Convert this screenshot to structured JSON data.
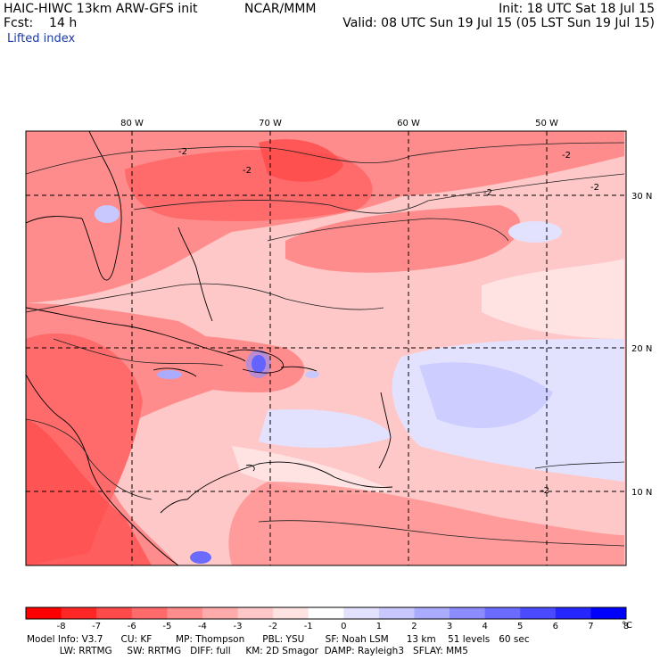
{
  "header": {
    "model_title": "HAIC-HIWC 13km ARW-GFS init",
    "org": "NCAR/MMM",
    "init": "Init: 18 UTC Sat 18 Jul 15",
    "fcst": "Fcst:    14 h",
    "valid": "Valid: 08 UTC Sun 19 Jul 15 (05 LST Sun 19 Jul 15)",
    "field": "Lifted index"
  },
  "map": {
    "lon_labels": [
      "80 W",
      "70 W",
      "60 W",
      "50 W"
    ],
    "lat_labels": [
      "30 N",
      "20 N",
      "10 N"
    ],
    "contour_label": "-2"
  },
  "colorbar": {
    "labels": [
      "-8",
      "-7",
      "-6",
      "-5",
      "-4",
      "-3",
      "-2",
      "-1",
      "0",
      "1",
      "2",
      "3",
      "4",
      "5",
      "6",
      "7",
      "8"
    ],
    "unit": "°C",
    "colors": [
      "#ff0000",
      "#ff2626",
      "#ff4a4a",
      "#ff6b6b",
      "#ff8c8c",
      "#ffabab",
      "#ffc8c8",
      "#ffe2e2",
      "#ffffff",
      "#e2e2ff",
      "#c8c8ff",
      "#abacff",
      "#8c8cff",
      "#6b6bff",
      "#4a4aff",
      "#2626ff",
      "#0000ff"
    ]
  },
  "footer": {
    "line1": "Model Info: V3.7      CU: KF        MP: Thompson      PBL: YSU       SF: Noah LSM      13 km    51 levels   60 sec",
    "line2": "           LW: RRTMG     SW: RRTMG   DIFF: full     KM: 2D Smagor  DAMP: Rayleigh3   SFLAY: MM5"
  }
}
